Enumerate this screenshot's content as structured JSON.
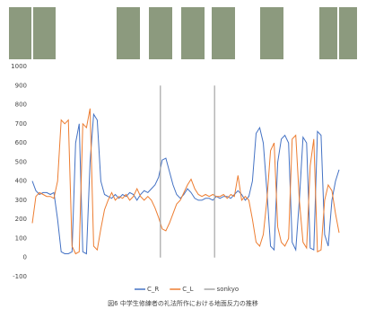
{
  "chart_data": {
    "type": "line",
    "title": "図6 中学生修練者の礼法所作における地面反力の推移",
    "x": [
      0,
      1,
      2,
      3,
      4,
      5,
      6,
      7,
      8,
      9,
      10,
      11,
      12,
      13,
      14,
      15,
      16,
      17,
      18,
      19,
      20,
      21,
      22,
      23,
      24,
      25,
      26,
      27,
      28,
      29,
      30,
      31,
      32,
      33,
      34,
      35,
      36,
      37,
      38,
      39,
      40,
      41,
      42,
      43,
      44,
      45,
      46,
      47,
      48,
      49,
      50,
      51,
      52,
      53,
      54,
      55,
      56,
      57,
      58,
      59,
      60,
      61,
      62,
      63,
      64,
      65,
      66,
      67,
      68,
      69,
      70,
      71,
      72,
      73,
      74,
      75,
      76,
      77,
      78,
      79,
      80,
      81,
      82,
      83,
      84,
      85
    ],
    "xlim": [
      0,
      85
    ],
    "ylim": [
      -100,
      1000
    ],
    "yticks": [
      -100,
      0,
      100,
      200,
      300,
      400,
      500,
      600,
      700,
      800,
      900,
      1000
    ],
    "series": [
      {
        "name": "C_R",
        "color": "#4472c4",
        "values": [
          400,
          350,
          330,
          340,
          340,
          330,
          340,
          200,
          30,
          20,
          20,
          30,
          600,
          700,
          30,
          20,
          500,
          750,
          720,
          400,
          330,
          320,
          310,
          330,
          310,
          330,
          320,
          340,
          330,
          300,
          330,
          350,
          340,
          360,
          380,
          420,
          510,
          520,
          450,
          380,
          330,
          310,
          330,
          360,
          340,
          310,
          300,
          300,
          310,
          310,
          300,
          320,
          310,
          320,
          320,
          310,
          330,
          350,
          330,
          300,
          320,
          400,
          650,
          680,
          600,
          350,
          60,
          40,
          500,
          620,
          640,
          600,
          80,
          40,
          300,
          630,
          600,
          50,
          40,
          660,
          640,
          120,
          60,
          300,
          400,
          460
        ]
      },
      {
        "name": "C_L",
        "color": "#ed7d31",
        "values": [
          180,
          320,
          340,
          330,
          320,
          320,
          310,
          400,
          720,
          700,
          720,
          60,
          20,
          30,
          700,
          680,
          780,
          60,
          40,
          150,
          250,
          300,
          340,
          300,
          320,
          310,
          330,
          300,
          320,
          360,
          320,
          300,
          320,
          300,
          260,
          210,
          150,
          140,
          180,
          230,
          280,
          300,
          340,
          380,
          410,
          360,
          330,
          320,
          330,
          320,
          330,
          320,
          320,
          330,
          310,
          330,
          320,
          430,
          300,
          320,
          300,
          200,
          80,
          60,
          120,
          300,
          560,
          600,
          160,
          80,
          60,
          100,
          620,
          640,
          300,
          80,
          50,
          480,
          620,
          30,
          40,
          300,
          380,
          350,
          230,
          130
        ]
      },
      {
        "name": "sonkyo",
        "color": "#a5a5a5",
        "x": [
          35.5,
          35.5,
          null,
          50.5,
          50.5
        ],
        "values": [
          0,
          900,
          null,
          0,
          900
        ]
      }
    ]
  }
}
